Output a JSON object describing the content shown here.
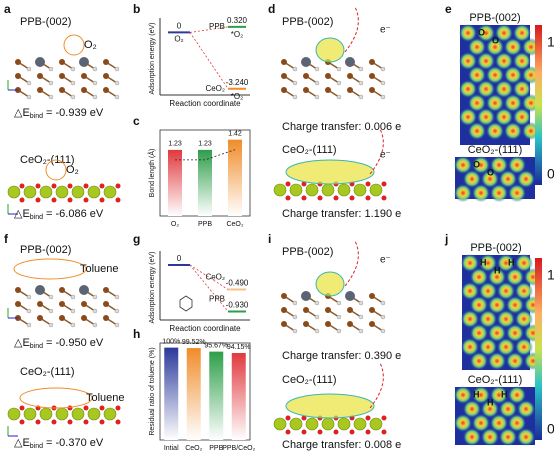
{
  "letters": [
    "a",
    "b",
    "c",
    "d",
    "e",
    "f",
    "g",
    "h",
    "i",
    "j"
  ],
  "structures": [
    {
      "title": "PPB-(002)",
      "adsorbate": "O₂",
      "delta": "△E",
      "sub": "bind",
      "energy": "= -0.939 eV"
    },
    {
      "title": "CeO₂-(111)",
      "adsorbate": "O₂",
      "delta": "△E",
      "sub": "bind",
      "energy": "= -6.086 eV"
    },
    {
      "title": "PPB-(002)",
      "adsorbate": "Toluene",
      "delta": "△E",
      "sub": "bind",
      "energy": "= -0.950 eV"
    },
    {
      "title": "CeO₂-(111)",
      "adsorbate": "Toluene",
      "delta": "△E",
      "sub": "bind",
      "energy": "= -0.370 eV"
    }
  ],
  "charge": [
    {
      "title": "PPB-(002)",
      "electron": "e⁻",
      "transfer": "Charge transfer: 0.006 e"
    },
    {
      "title": "CeO₂-(111)",
      "electron": "e⁻",
      "transfer": "Charge transfer: 1.190 e"
    },
    {
      "title": "PPB-(002)",
      "electron": "e⁻",
      "transfer": "Charge transfer: 0.390 e"
    },
    {
      "title": "CeO₂-(111)",
      "transfer": "Charge transfer: 0.008 e"
    }
  ],
  "maps": [
    {
      "title": "PPB-(002)",
      "atoms": [
        "O",
        "O"
      ]
    },
    {
      "title": "CeO₂-(111)",
      "atoms": [
        "O",
        "O"
      ]
    },
    {
      "title": "PPB-(002)",
      "atoms": [
        "H",
        "H",
        "H"
      ]
    },
    {
      "title": "CeO₂-(111)",
      "atoms": [
        "H",
        "H",
        "H"
      ]
    }
  ],
  "colorbar": [
    "1",
    "0"
  ],
  "chart_data": [
    {
      "type": "levels",
      "ylabel": "Adsorption energy (eV)",
      "xlabel": "Reaction coordinate",
      "categories": [
        "O₂",
        "PPB",
        "CeO₂"
      ],
      "state_labels": [
        null,
        "*O₂",
        "*O₂"
      ],
      "values": [
        0,
        0.32,
        -3.24
      ],
      "value_labels": [
        "0",
        "0.320",
        "-3.240"
      ],
      "colors": [
        "#2b3a9a",
        "#2e9e4a",
        "#f08c2a"
      ],
      "ylim": [
        -3.6,
        0.6
      ]
    },
    {
      "type": "bar",
      "ylabel": "Bond length (Å)",
      "categories": [
        "O₂",
        "PPB",
        "CeO₂"
      ],
      "values": [
        1.23,
        1.23,
        1.42
      ],
      "colors": [
        "#e0393e",
        "#2e9e4a",
        "#f08c2a"
      ],
      "ylim": [
        0,
        1.6
      ]
    },
    {
      "type": "levels",
      "ylabel": "Adsorption energy (eV)",
      "xlabel": "Reaction coordinate",
      "categories": [
        null,
        "CeO₂",
        "PPB"
      ],
      "state_labels": [
        null,
        null,
        null
      ],
      "values": [
        0,
        -0.49,
        -0.93
      ],
      "value_labels": [
        "0",
        "-0.490",
        "-0.930"
      ],
      "colors": [
        "#2b3a9a",
        "#f5c28a",
        "#2e9e4a"
      ],
      "ylim": [
        -1.1,
        0.2
      ]
    },
    {
      "type": "bar",
      "ylabel": "Residual ratio of toluene (%)",
      "categories": [
        "Intial",
        "CeO₂",
        "PPB",
        "PPB/CeO₂"
      ],
      "values": [
        100,
        99.52,
        95.67,
        94.15
      ],
      "value_labels": [
        "100%",
        "99.52%",
        "95.67%",
        "94.15%"
      ],
      "colors": [
        "#2b3a9a",
        "#f08c2a",
        "#2e9e4a",
        "#e0393e"
      ],
      "ylim": [
        0,
        105
      ]
    }
  ]
}
